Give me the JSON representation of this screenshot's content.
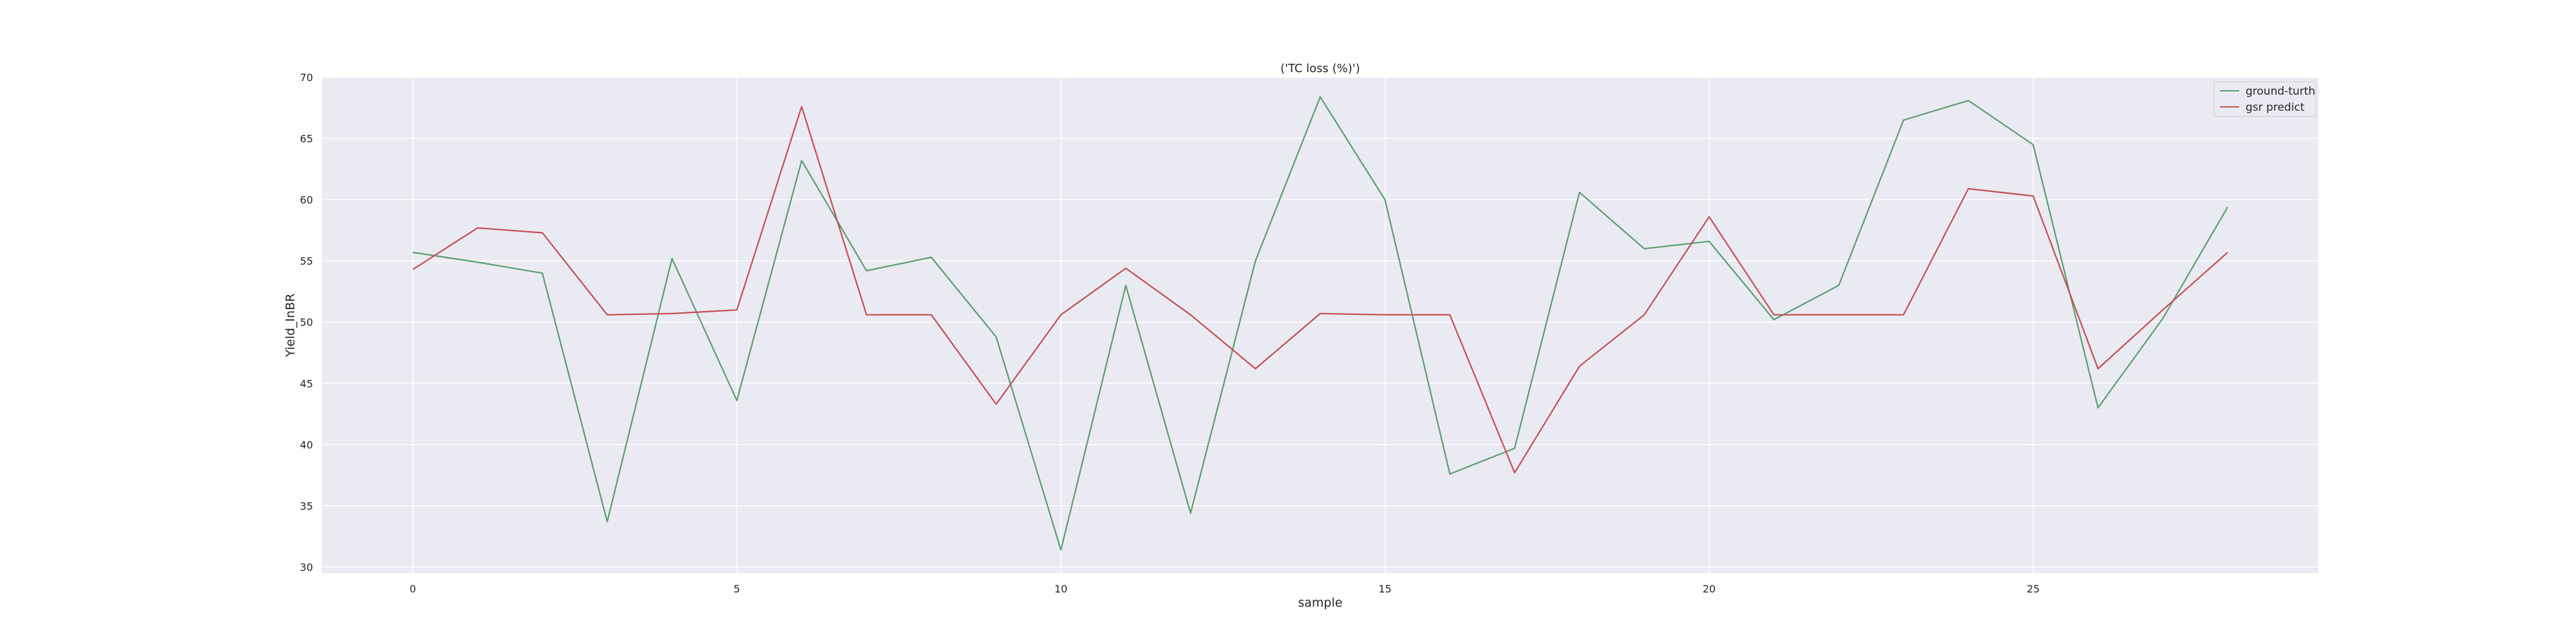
{
  "chart_data": {
    "type": "line",
    "title": "('TC loss (%)')",
    "xlabel": "sample",
    "ylabel": "Yield_InBR",
    "xlim": [
      -1.4,
      29.4
    ],
    "ylim": [
      29.5,
      70
    ],
    "xticks": [
      0,
      5,
      10,
      15,
      20,
      25
    ],
    "yticks": [
      30,
      35,
      40,
      45,
      50,
      55,
      60,
      65,
      70
    ],
    "grid": true,
    "legend_position": "top-right",
    "background": "#eaeaf2",
    "series": [
      {
        "name": "ground-turth",
        "color": "#5a9e6f",
        "x": [
          0,
          1,
          2,
          3,
          4,
          5,
          6,
          7,
          8,
          9,
          10,
          11,
          12,
          13,
          14,
          15,
          16,
          17,
          18,
          19,
          20,
          21,
          22,
          23,
          24,
          25,
          26,
          27,
          28
        ],
        "y": [
          55.7,
          54.9,
          54.0,
          33.7,
          55.2,
          43.6,
          63.2,
          54.2,
          55.3,
          48.8,
          31.4,
          53.0,
          34.4,
          55.0,
          68.4,
          60.0,
          37.6,
          39.7,
          60.6,
          56.0,
          56.6,
          50.2,
          53.0,
          66.5,
          68.1,
          64.5,
          43.0,
          50.3,
          59.4
        ]
      },
      {
        "name": "gsr predict",
        "color": "#c44e52",
        "x": [
          0,
          1,
          2,
          3,
          4,
          5,
          6,
          7,
          8,
          9,
          10,
          11,
          12,
          13,
          14,
          15,
          16,
          17,
          18,
          19,
          20,
          21,
          22,
          23,
          24,
          25,
          26,
          27,
          28
        ],
        "y": [
          54.3,
          57.7,
          57.3,
          50.6,
          50.7,
          51.0,
          67.6,
          50.6,
          50.6,
          43.3,
          50.6,
          54.4,
          50.6,
          46.2,
          50.7,
          50.6,
          50.6,
          37.7,
          46.4,
          50.6,
          58.6,
          50.6,
          50.6,
          50.6,
          60.9,
          60.3,
          46.2,
          51.0,
          55.7
        ]
      }
    ]
  }
}
